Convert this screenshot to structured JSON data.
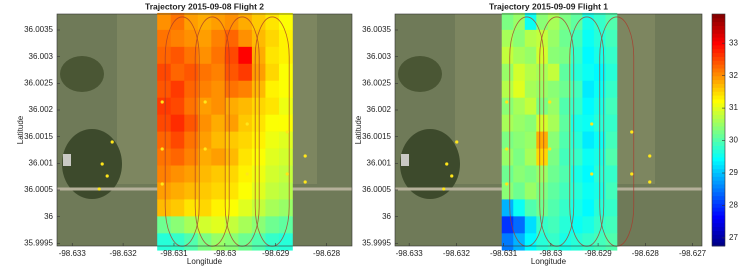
{
  "chart_data": [
    {
      "type": "heatmap",
      "title": "Trajectory 2015-09-08 Flight 2",
      "xlabel": "Longitude",
      "ylabel": "Latitude",
      "xlim": [
        -98.6333,
        -98.6275
      ],
      "ylim": [
        35.99945,
        36.0038
      ],
      "xticks": [
        -98.633,
        -98.632,
        -98.631,
        -98.63,
        -98.629,
        -98.628
      ],
      "yticks": [
        35.9995,
        36,
        36.0005,
        36.001,
        36.0015,
        36.002,
        36.0025,
        36.003,
        36.0035
      ],
      "extent": {
        "x": [
          -98.63133,
          -98.62867
        ],
        "y": [
          35.99937,
          36.00382
        ]
      },
      "colormap": "jet",
      "clim": [
        26.75,
        33.9
      ],
      "z": [
        [
          32.0,
          32.2,
          31.9,
          31.8,
          31.9,
          32.0,
          31.8,
          31.6,
          31.4,
          31.2
        ],
        [
          32.2,
          32.1,
          32.0,
          31.9,
          32.1,
          32.3,
          32.0,
          31.7,
          31.5,
          31.3
        ],
        [
          32.3,
          32.4,
          32.2,
          32.0,
          32.2,
          32.5,
          33.0,
          31.8,
          31.4,
          31.3
        ],
        [
          32.5,
          32.3,
          32.4,
          32.2,
          32.1,
          32.4,
          32.6,
          31.9,
          31.5,
          31.2
        ],
        [
          32.4,
          32.6,
          32.3,
          32.1,
          32.0,
          32.2,
          32.1,
          31.7,
          31.3,
          31.2
        ],
        [
          32.6,
          32.5,
          32.2,
          31.9,
          32.0,
          31.8,
          31.7,
          31.5,
          31.4,
          31.1
        ],
        [
          32.5,
          32.7,
          32.4,
          32.0,
          31.8,
          31.9,
          31.6,
          31.4,
          31.2,
          31.2
        ],
        [
          32.3,
          32.5,
          32.2,
          31.9,
          31.7,
          31.6,
          31.5,
          31.3,
          31.1,
          31.0
        ],
        [
          32.2,
          32.3,
          32.1,
          31.8,
          31.9,
          31.7,
          31.4,
          31.2,
          31.0,
          30.9
        ],
        [
          32.1,
          32.0,
          31.9,
          31.7,
          31.6,
          31.5,
          31.3,
          31.1,
          30.9,
          30.8
        ],
        [
          31.9,
          31.8,
          31.7,
          31.6,
          31.5,
          31.4,
          31.2,
          31.0,
          30.8,
          30.7
        ],
        [
          31.7,
          31.6,
          31.4,
          31.5,
          31.3,
          31.2,
          31.0,
          30.8,
          30.6,
          30.5
        ],
        [
          30.2,
          30.4,
          30.6,
          30.9,
          31.0,
          30.8,
          30.6,
          30.4,
          30.2,
          30.1
        ],
        [
          29.7,
          29.8,
          30.0,
          30.3,
          30.5,
          30.4,
          30.2,
          30.0,
          29.8,
          29.7
        ]
      ]
    },
    {
      "type": "heatmap",
      "title": "Trajectory 2015-09-09 Flight 1",
      "xlabel": "Longitude",
      "ylabel": "Latitude",
      "xlim": [
        -98.6333,
        -98.6268
      ],
      "ylim": [
        35.99945,
        36.0038
      ],
      "xticks": [
        -98.633,
        -98.632,
        -98.631,
        -98.63,
        -98.629,
        -98.628,
        -98.627
      ],
      "yticks": [
        35.9995,
        36,
        36.0005,
        36.001,
        36.0015,
        36.002,
        36.0025,
        36.003,
        36.0035
      ],
      "extent": {
        "x": [
          -98.63104,
          -98.6286
        ],
        "y": [
          35.99937,
          36.00382
        ]
      },
      "colormap": "jet",
      "clim": [
        26.75,
        33.9
      ],
      "colorbar_ticks": [
        27,
        28,
        29,
        30,
        31,
        32,
        33
      ],
      "z": [
        [
          30.3,
          30.5,
          29.5,
          30.4,
          30.6,
          30.3,
          30.1,
          29.6,
          29.8,
          30.0
        ],
        [
          30.6,
          30.4,
          30.7,
          30.8,
          30.5,
          30.2,
          29.9,
          29.5,
          29.7,
          29.9
        ],
        [
          30.8,
          30.6,
          30.5,
          30.9,
          30.4,
          30.3,
          29.8,
          29.4,
          29.6,
          29.8
        ],
        [
          30.5,
          30.9,
          30.7,
          30.6,
          30.8,
          30.1,
          29.7,
          29.5,
          29.4,
          29.7
        ],
        [
          30.7,
          31.0,
          30.6,
          30.5,
          30.4,
          30.2,
          29.9,
          29.3,
          29.5,
          29.8
        ],
        [
          30.4,
          30.6,
          30.8,
          30.3,
          30.5,
          30.0,
          29.8,
          29.4,
          29.6,
          29.9
        ],
        [
          30.6,
          30.5,
          30.4,
          30.9,
          30.6,
          30.1,
          29.6,
          29.5,
          29.7,
          29.8
        ],
        [
          30.3,
          30.4,
          30.5,
          31.8,
          30.4,
          30.0,
          29.7,
          29.3,
          29.5,
          29.9
        ],
        [
          30.5,
          30.3,
          30.6,
          31.5,
          30.3,
          29.9,
          29.8,
          29.5,
          29.6,
          30.0
        ],
        [
          30.2,
          30.4,
          30.3,
          30.5,
          30.2,
          30.0,
          29.6,
          29.4,
          29.7,
          29.8
        ],
        [
          30.4,
          30.2,
          30.5,
          30.3,
          30.1,
          29.9,
          29.7,
          29.5,
          29.6,
          29.9
        ],
        [
          28.9,
          29.5,
          30.0,
          30.2,
          30.0,
          29.8,
          29.6,
          29.4,
          29.7,
          29.8
        ],
        [
          28.0,
          28.4,
          29.2,
          29.8,
          29.9,
          29.7,
          29.5,
          29.6,
          29.8,
          29.9
        ],
        [
          28.5,
          28.9,
          29.4,
          29.7,
          29.8,
          29.6,
          29.7,
          29.8,
          29.9,
          30.0
        ]
      ]
    }
  ]
}
